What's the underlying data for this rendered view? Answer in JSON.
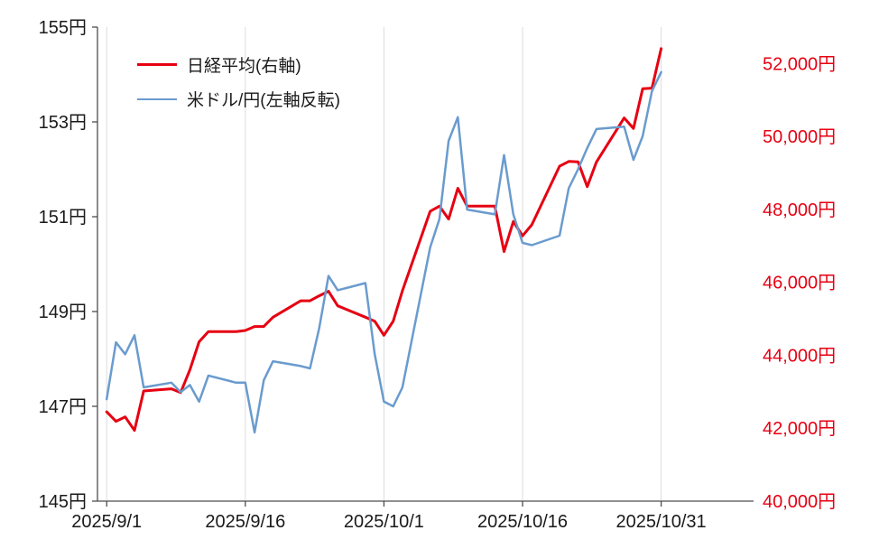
{
  "chart_data": {
    "type": "line",
    "title": "",
    "legend_position": "top-left-inside",
    "grid": "vertical-only",
    "x_domain": [
      "2025/8/31",
      "2025/11/10"
    ],
    "x_ticks": [
      "2025/9/1",
      "2025/9/16",
      "2025/10/1",
      "2025/10/16",
      "2025/10/31"
    ],
    "x_dates": [
      "2025/9/1",
      "2025/9/2",
      "2025/9/3",
      "2025/9/4",
      "2025/9/5",
      "2025/9/8",
      "2025/9/9",
      "2025/9/10",
      "2025/9/11",
      "2025/9/12",
      "2025/9/15",
      "2025/9/16",
      "2025/9/17",
      "2025/9/18",
      "2025/9/19",
      "2025/9/22",
      "2025/9/23",
      "2025/9/24",
      "2025/9/25",
      "2025/9/26",
      "2025/9/29",
      "2025/9/30",
      "2025/10/1",
      "2025/10/2",
      "2025/10/3",
      "2025/10/6",
      "2025/10/7",
      "2025/10/8",
      "2025/10/9",
      "2025/10/10",
      "2025/10/13",
      "2025/10/14",
      "2025/10/15",
      "2025/10/16",
      "2025/10/17",
      "2025/10/20",
      "2025/10/21",
      "2025/10/22",
      "2025/10/23",
      "2025/10/24",
      "2025/10/27",
      "2025/10/28",
      "2025/10/29",
      "2025/10/30",
      "2025/10/31"
    ],
    "series": [
      {
        "name": "日経平均(右軸)",
        "data_name": "nikkei-line",
        "axis": "right",
        "color": "#e60012",
        "width": 3,
        "values": [
          42450,
          42190,
          42310,
          41940,
          43020,
          43080,
          42980,
          43600,
          44370,
          44650,
          44650,
          44680,
          44790,
          44790,
          45045,
          45495,
          45495,
          45630,
          45755,
          45355,
          45045,
          44935,
          44550,
          44935,
          45770,
          47945,
          48090,
          47735,
          48580,
          48090,
          48090,
          46845,
          47670,
          47275,
          47580,
          49185,
          49315,
          49305,
          48625,
          49300,
          50510,
          50220,
          51310,
          51325,
          52410
        ]
      },
      {
        "name": "米ドル/円(左軸反転)",
        "data_name": "usdjpy-line",
        "axis": "left",
        "color": "#6a9bce",
        "width": 2.5,
        "values": [
          147.15,
          148.35,
          148.1,
          148.5,
          147.4,
          147.5,
          147.3,
          147.45,
          147.1,
          147.65,
          147.5,
          147.5,
          146.45,
          147.55,
          147.95,
          147.85,
          147.8,
          148.65,
          149.75,
          149.45,
          149.6,
          148.1,
          147.1,
          147.0,
          147.4,
          150.35,
          150.95,
          152.6,
          153.1,
          151.15,
          151.05,
          152.3,
          151.05,
          150.45,
          150.4,
          150.6,
          151.6,
          152.0,
          152.45,
          152.85,
          152.9,
          152.2,
          152.7,
          153.65,
          154.05
        ]
      }
    ],
    "left_axis": {
      "min": 145,
      "max": 155,
      "ticks": [
        145,
        147,
        149,
        151,
        153,
        155
      ],
      "suffix": "円",
      "color": "#1a1a1a"
    },
    "right_axis": {
      "min": 40000,
      "max": 53000,
      "ticks": [
        40000,
        42000,
        44000,
        46000,
        48000,
        50000,
        52000
      ],
      "suffix": "円",
      "color": "#e60012"
    },
    "colors": {
      "gridline": "#dcdcdc",
      "axis": "#4d4d4d",
      "background": "#ffffff"
    }
  }
}
